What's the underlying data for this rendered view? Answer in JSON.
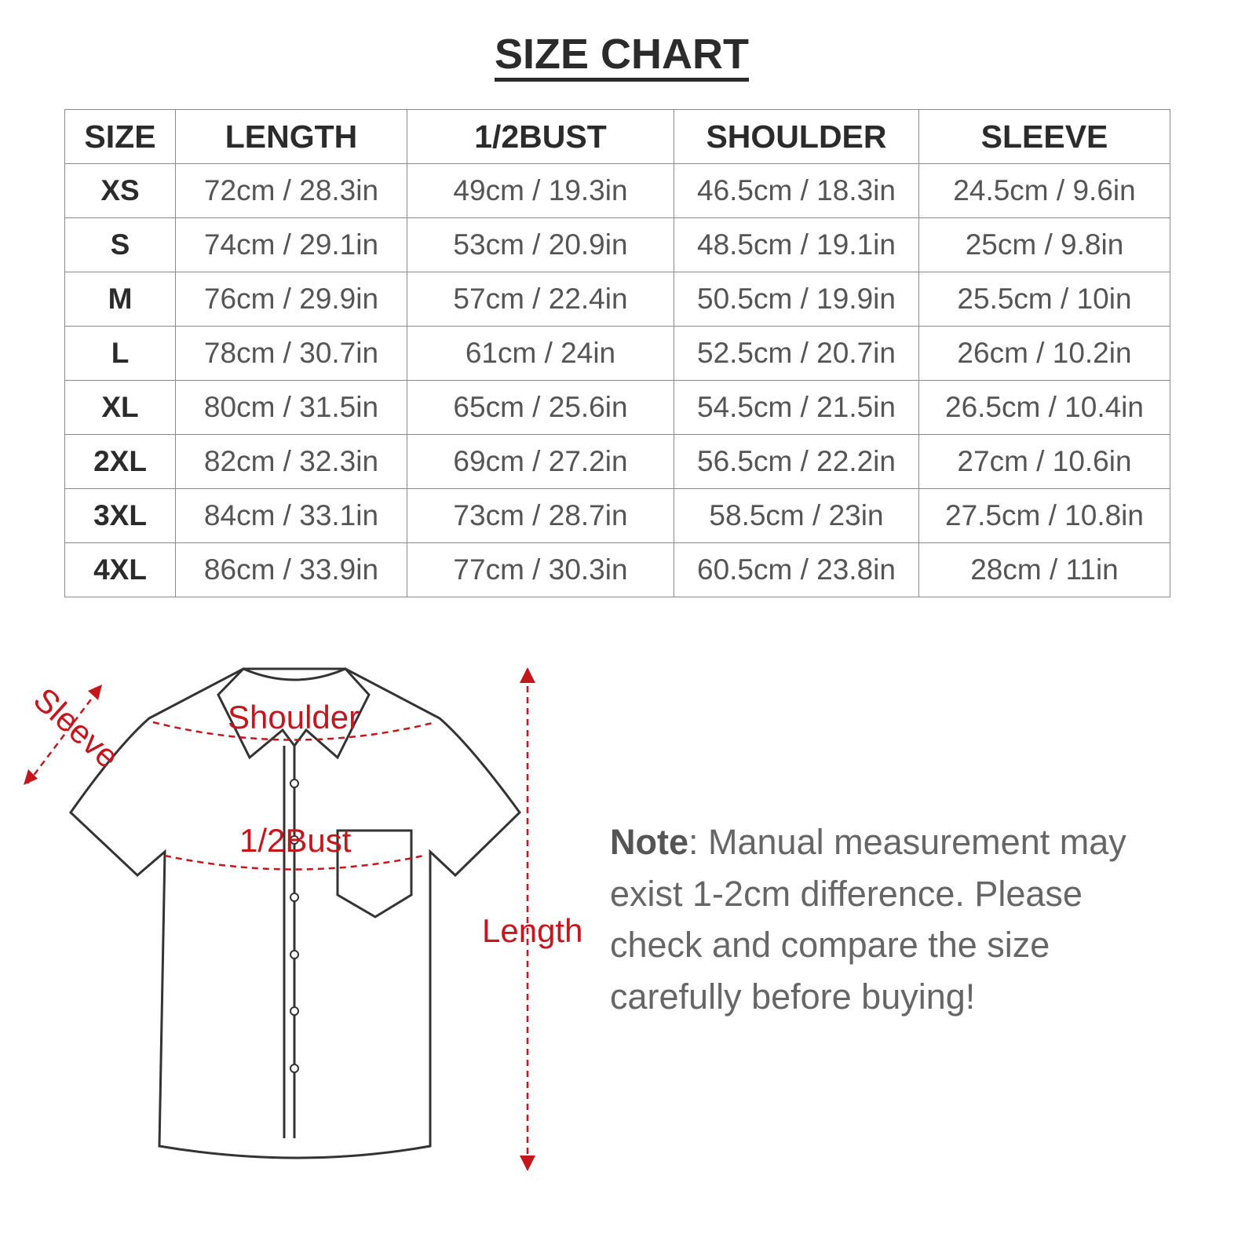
{
  "title": "SIZE CHART",
  "table": {
    "headers": [
      "SIZE",
      "LENGTH",
      "1/2BUST",
      "SHOULDER",
      "SLEEVE"
    ],
    "rows": [
      [
        "XS",
        "72cm / 28.3in",
        "49cm / 19.3in",
        "46.5cm / 18.3in",
        "24.5cm / 9.6in"
      ],
      [
        "S",
        "74cm / 29.1in",
        "53cm / 20.9in",
        "48.5cm / 19.1in",
        "25cm / 9.8in"
      ],
      [
        "M",
        "76cm / 29.9in",
        "57cm / 22.4in",
        "50.5cm / 19.9in",
        "25.5cm / 10in"
      ],
      [
        "L",
        "78cm / 30.7in",
        "61cm / 24in",
        "52.5cm / 20.7in",
        "26cm / 10.2in"
      ],
      [
        "XL",
        "80cm / 31.5in",
        "65cm / 25.6in",
        "54.5cm / 21.5in",
        "26.5cm / 10.4in"
      ],
      [
        "2XL",
        "82cm / 32.3in",
        "69cm / 27.2in",
        "56.5cm / 22.2in",
        "27cm / 10.6in"
      ],
      [
        "3XL",
        "84cm / 33.1in",
        "73cm / 28.7in",
        "58.5cm / 23in",
        "27.5cm / 10.8in"
      ],
      [
        "4XL",
        "86cm / 33.9in",
        "77cm / 30.3in",
        "60.5cm / 23.8in",
        "28cm / 11in"
      ]
    ]
  },
  "diagram": {
    "sleeve": "Sleeve",
    "shoulder": "Shoulder",
    "bust": "1/2Bust",
    "length": "Length",
    "accent": "#c4161c"
  },
  "note": {
    "label": "Note",
    "text": ": Manual measurement may exist 1-2cm difference. Please check and compare the size carefully before buying!"
  }
}
